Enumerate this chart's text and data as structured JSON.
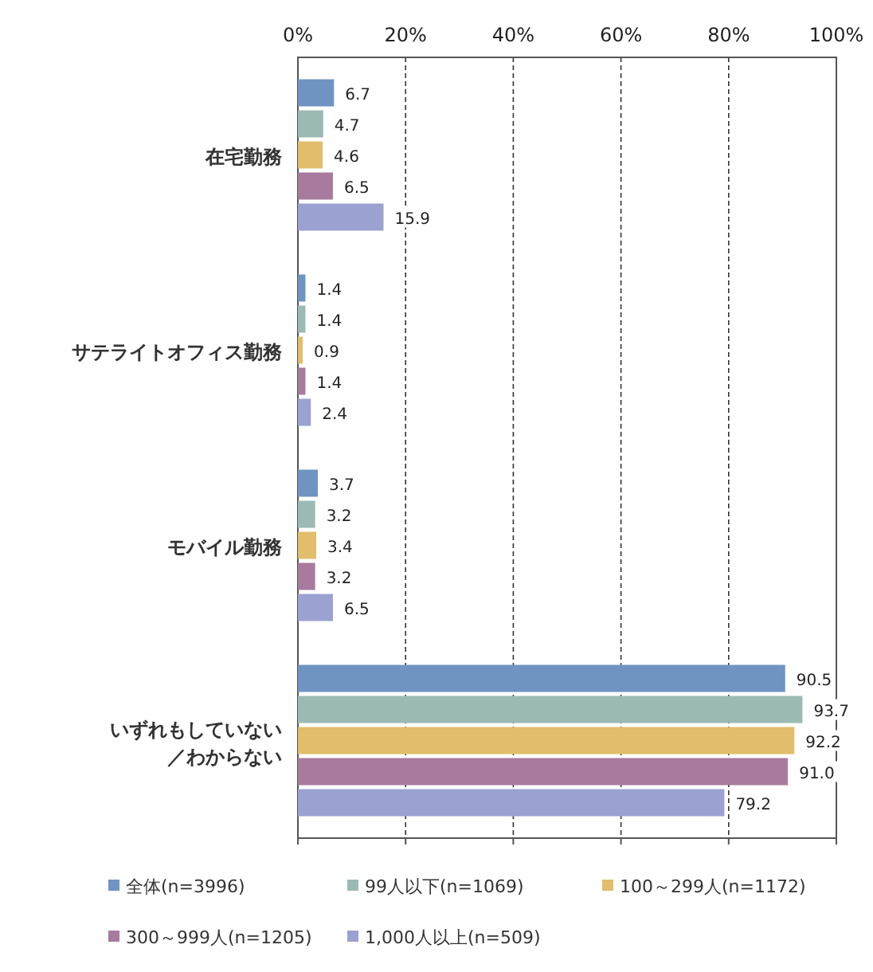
{
  "chart_data": {
    "type": "bar",
    "orientation": "horizontal",
    "categories": [
      "在宅勤務",
      "サテライトオフィス勤務",
      "モバイル勤務",
      "いずれもしていない／わからない"
    ],
    "series": [
      {
        "name": "全体(n=3996)",
        "color": "#7094c2",
        "values": [
          6.7,
          1.4,
          3.7,
          90.5
        ],
        "value_labels": [
          "6.7",
          "1.4",
          "3.7",
          "90.5"
        ]
      },
      {
        "name": "99人以下(n=1069)",
        "color": "#9cbab4",
        "values": [
          4.7,
          1.4,
          3.2,
          93.7
        ],
        "value_labels": [
          "4.7",
          "1.4",
          "3.2",
          "93.7"
        ]
      },
      {
        "name": "100～299人(n=1172)",
        "color": "#e2bd6c",
        "values": [
          4.6,
          0.9,
          3.4,
          92.2
        ],
        "value_labels": [
          "4.6",
          "0.9",
          "3.4",
          "92.2"
        ]
      },
      {
        "name": "300～999人(n=1205)",
        "color": "#a87b9e",
        "values": [
          6.5,
          1.4,
          3.2,
          91.0
        ],
        "value_labels": [
          "6.5",
          "1.4",
          "3.2",
          "91.0"
        ]
      },
      {
        "name": "1,000人以上(n=509)",
        "color": "#9ba1d0",
        "values": [
          15.9,
          2.4,
          6.5,
          79.2
        ],
        "value_labels": [
          "15.9",
          "2.4",
          "6.5",
          "79.2"
        ]
      }
    ],
    "xlim": [
      0,
      100
    ],
    "xticks": [
      {
        "value": 0,
        "label": "0%"
      },
      {
        "value": 20,
        "label": "20%"
      },
      {
        "value": 40,
        "label": "40%"
      },
      {
        "value": 60,
        "label": "60%"
      },
      {
        "value": 80,
        "label": "80%"
      },
      {
        "value": 100,
        "label": "100%"
      }
    ],
    "grid": "x",
    "legend": "bottom"
  }
}
